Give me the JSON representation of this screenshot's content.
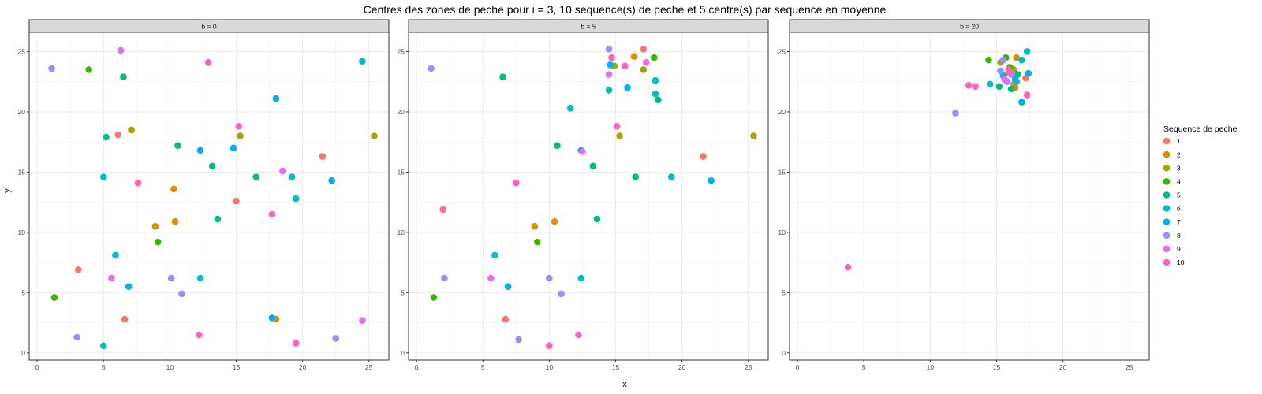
{
  "chart_data": {
    "type": "scatter",
    "title": "Centres des zones de peche pour i = 3, 10 sequence(s) de peche et 5 centre(s) par sequence en moyenne",
    "xlabel": "x",
    "ylabel": "y",
    "xlim": [
      -0.6,
      26.5
    ],
    "ylim": [
      -0.6,
      26.6
    ],
    "xticks": [
      0,
      5,
      10,
      15,
      20,
      25
    ],
    "yticks": [
      0,
      5,
      10,
      15,
      20,
      25
    ],
    "grid": true,
    "legend": {
      "title": "Sequence de peche",
      "position": "right",
      "entries": [
        {
          "label": "1",
          "color": "#F8766D"
        },
        {
          "label": "2",
          "color": "#D89000"
        },
        {
          "label": "3",
          "color": "#A3A500"
        },
        {
          "label": "4",
          "color": "#39B600"
        },
        {
          "label": "5",
          "color": "#00BF7D"
        },
        {
          "label": "6",
          "color": "#00BFC4"
        },
        {
          "label": "7",
          "color": "#00B0F6"
        },
        {
          "label": "8",
          "color": "#9590FF"
        },
        {
          "label": "9",
          "color": "#E76BF3"
        },
        {
          "label": "10",
          "color": "#FF62BC"
        }
      ]
    },
    "panels": [
      {
        "strip": "b = 0",
        "points": [
          {
            "s": 1,
            "x": 3.1,
            "y": 6.9
          },
          {
            "s": 1,
            "x": 6.1,
            "y": 18.1
          },
          {
            "s": 1,
            "x": 6.6,
            "y": 2.8
          },
          {
            "s": 1,
            "x": 15.0,
            "y": 12.6
          },
          {
            "s": 1,
            "x": 21.5,
            "y": 16.3
          },
          {
            "s": 2,
            "x": 8.9,
            "y": 10.5
          },
          {
            "s": 2,
            "x": 10.3,
            "y": 13.6
          },
          {
            "s": 2,
            "x": 10.4,
            "y": 10.9
          },
          {
            "s": 2,
            "x": 18.0,
            "y": 2.8
          },
          {
            "s": 3,
            "x": 7.1,
            "y": 18.5
          },
          {
            "s": 3,
            "x": 15.3,
            "y": 18.0
          },
          {
            "s": 3,
            "x": 25.4,
            "y": 18.0
          },
          {
            "s": 4,
            "x": 3.9,
            "y": 23.5
          },
          {
            "s": 4,
            "x": 9.1,
            "y": 9.2
          },
          {
            "s": 4,
            "x": 1.3,
            "y": 4.6
          },
          {
            "s": 5,
            "x": 6.5,
            "y": 22.9
          },
          {
            "s": 5,
            "x": 5.2,
            "y": 17.9
          },
          {
            "s": 5,
            "x": 10.6,
            "y": 17.2
          },
          {
            "s": 5,
            "x": 13.2,
            "y": 15.5
          },
          {
            "s": 5,
            "x": 16.5,
            "y": 14.6
          },
          {
            "s": 5,
            "x": 13.6,
            "y": 11.1
          },
          {
            "s": 6,
            "x": 24.5,
            "y": 24.2
          },
          {
            "s": 6,
            "x": 5.0,
            "y": 14.6
          },
          {
            "s": 6,
            "x": 19.2,
            "y": 14.6
          },
          {
            "s": 6,
            "x": 19.5,
            "y": 12.8
          },
          {
            "s": 6,
            "x": 5.9,
            "y": 8.1
          },
          {
            "s": 6,
            "x": 12.3,
            "y": 6.2
          },
          {
            "s": 6,
            "x": 5.0,
            "y": 0.6
          },
          {
            "s": 7,
            "x": 18.0,
            "y": 21.1
          },
          {
            "s": 7,
            "x": 12.3,
            "y": 16.8
          },
          {
            "s": 7,
            "x": 14.8,
            "y": 17.0
          },
          {
            "s": 7,
            "x": 22.2,
            "y": 14.3
          },
          {
            "s": 7,
            "x": 6.9,
            "y": 5.5
          },
          {
            "s": 7,
            "x": 17.7,
            "y": 2.9
          },
          {
            "s": 8,
            "x": 1.1,
            "y": 23.6
          },
          {
            "s": 8,
            "x": 10.1,
            "y": 6.2
          },
          {
            "s": 8,
            "x": 10.9,
            "y": 4.9
          },
          {
            "s": 8,
            "x": 3.0,
            "y": 1.3
          },
          {
            "s": 8,
            "x": 22.5,
            "y": 1.2
          },
          {
            "s": 9,
            "x": 6.3,
            "y": 25.1
          },
          {
            "s": 9,
            "x": 18.5,
            "y": 15.1
          },
          {
            "s": 9,
            "x": 5.6,
            "y": 6.2
          },
          {
            "s": 9,
            "x": 24.5,
            "y": 2.7
          },
          {
            "s": 10,
            "x": 12.9,
            "y": 24.1
          },
          {
            "s": 10,
            "x": 15.2,
            "y": 18.8
          },
          {
            "s": 10,
            "x": 7.6,
            "y": 14.1
          },
          {
            "s": 10,
            "x": 17.7,
            "y": 11.5
          },
          {
            "s": 10,
            "x": 12.2,
            "y": 1.5
          },
          {
            "s": 10,
            "x": 19.5,
            "y": 0.8
          }
        ]
      },
      {
        "strip": "b = 5",
        "points": [
          {
            "s": 1,
            "x": 17.1,
            "y": 25.2
          },
          {
            "s": 1,
            "x": 2.0,
            "y": 11.9
          },
          {
            "s": 1,
            "x": 21.6,
            "y": 16.3
          },
          {
            "s": 1,
            "x": 6.7,
            "y": 2.8
          },
          {
            "s": 2,
            "x": 16.4,
            "y": 24.6
          },
          {
            "s": 2,
            "x": 8.9,
            "y": 10.5
          },
          {
            "s": 2,
            "x": 10.4,
            "y": 10.9
          },
          {
            "s": 3,
            "x": 14.9,
            "y": 23.8
          },
          {
            "s": 3,
            "x": 17.1,
            "y": 23.5
          },
          {
            "s": 3,
            "x": 15.3,
            "y": 18.0
          },
          {
            "s": 3,
            "x": 25.4,
            "y": 18.0
          },
          {
            "s": 4,
            "x": 17.9,
            "y": 24.5
          },
          {
            "s": 4,
            "x": 9.1,
            "y": 9.2
          },
          {
            "s": 4,
            "x": 1.3,
            "y": 4.6
          },
          {
            "s": 5,
            "x": 6.5,
            "y": 22.9
          },
          {
            "s": 5,
            "x": 18.2,
            "y": 21.0
          },
          {
            "s": 5,
            "x": 10.6,
            "y": 17.2
          },
          {
            "s": 5,
            "x": 13.3,
            "y": 15.5
          },
          {
            "s": 5,
            "x": 16.5,
            "y": 14.6
          },
          {
            "s": 5,
            "x": 13.6,
            "y": 11.1
          },
          {
            "s": 6,
            "x": 18.0,
            "y": 22.6
          },
          {
            "s": 6,
            "x": 18.0,
            "y": 21.5
          },
          {
            "s": 6,
            "x": 11.6,
            "y": 20.3
          },
          {
            "s": 6,
            "x": 14.5,
            "y": 21.8
          },
          {
            "s": 6,
            "x": 19.2,
            "y": 14.6
          },
          {
            "s": 6,
            "x": 5.9,
            "y": 8.1
          },
          {
            "s": 6,
            "x": 12.4,
            "y": 6.2
          },
          {
            "s": 7,
            "x": 14.6,
            "y": 23.9
          },
          {
            "s": 7,
            "x": 15.9,
            "y": 22.0
          },
          {
            "s": 7,
            "x": 12.4,
            "y": 16.8
          },
          {
            "s": 7,
            "x": 22.2,
            "y": 14.3
          },
          {
            "s": 7,
            "x": 6.9,
            "y": 5.5
          },
          {
            "s": 8,
            "x": 14.5,
            "y": 25.2
          },
          {
            "s": 8,
            "x": 1.1,
            "y": 23.6
          },
          {
            "s": 8,
            "x": 2.1,
            "y": 6.2
          },
          {
            "s": 8,
            "x": 10.0,
            "y": 6.2
          },
          {
            "s": 8,
            "x": 10.9,
            "y": 4.9
          },
          {
            "s": 8,
            "x": 7.7,
            "y": 1.1
          },
          {
            "s": 9,
            "x": 17.3,
            "y": 24.1
          },
          {
            "s": 9,
            "x": 14.5,
            "y": 23.1
          },
          {
            "s": 9,
            "x": 12.5,
            "y": 16.7
          },
          {
            "s": 9,
            "x": 5.6,
            "y": 6.2
          },
          {
            "s": 10,
            "x": 14.7,
            "y": 24.5
          },
          {
            "s": 10,
            "x": 15.7,
            "y": 23.8
          },
          {
            "s": 10,
            "x": 15.1,
            "y": 18.8
          },
          {
            "s": 10,
            "x": 7.5,
            "y": 14.1
          },
          {
            "s": 10,
            "x": 10.0,
            "y": 0.6
          },
          {
            "s": 10,
            "x": 12.2,
            "y": 1.5
          }
        ]
      },
      {
        "strip": "b = 20",
        "points": [
          {
            "s": 1,
            "x": 17.2,
            "y": 22.8
          },
          {
            "s": 1,
            "x": 16.3,
            "y": 22.3
          },
          {
            "s": 2,
            "x": 16.5,
            "y": 24.5
          },
          {
            "s": 2,
            "x": 15.9,
            "y": 23.2
          },
          {
            "s": 2,
            "x": 16.4,
            "y": 22.0
          },
          {
            "s": 3,
            "x": 15.3,
            "y": 24.1
          },
          {
            "s": 3,
            "x": 16.3,
            "y": 23.5
          },
          {
            "s": 4,
            "x": 14.4,
            "y": 24.3
          },
          {
            "s": 4,
            "x": 15.7,
            "y": 24.5
          },
          {
            "s": 4,
            "x": 16.0,
            "y": 23.7
          },
          {
            "s": 5,
            "x": 15.2,
            "y": 22.1
          },
          {
            "s": 5,
            "x": 16.1,
            "y": 21.9
          },
          {
            "s": 5,
            "x": 16.6,
            "y": 23.1
          },
          {
            "s": 6,
            "x": 17.3,
            "y": 25.0
          },
          {
            "s": 6,
            "x": 16.9,
            "y": 24.3
          },
          {
            "s": 6,
            "x": 14.5,
            "y": 22.3
          },
          {
            "s": 6,
            "x": 16.5,
            "y": 22.5
          },
          {
            "s": 7,
            "x": 17.4,
            "y": 23.2
          },
          {
            "s": 7,
            "x": 16.9,
            "y": 20.8
          },
          {
            "s": 7,
            "x": 16.4,
            "y": 22.7
          },
          {
            "s": 7,
            "x": 15.5,
            "y": 23.0
          },
          {
            "s": 8,
            "x": 15.5,
            "y": 24.3
          },
          {
            "s": 8,
            "x": 15.3,
            "y": 23.4
          },
          {
            "s": 8,
            "x": 11.9,
            "y": 19.9
          },
          {
            "s": 8,
            "x": 15.8,
            "y": 22.5
          },
          {
            "s": 9,
            "x": 15.6,
            "y": 22.7
          },
          {
            "s": 9,
            "x": 16.1,
            "y": 23.1
          },
          {
            "s": 10,
            "x": 12.9,
            "y": 22.2
          },
          {
            "s": 10,
            "x": 13.4,
            "y": 22.1
          },
          {
            "s": 10,
            "x": 15.9,
            "y": 23.5
          },
          {
            "s": 10,
            "x": 17.3,
            "y": 21.4
          },
          {
            "s": 10,
            "x": 3.8,
            "y": 7.1
          }
        ]
      }
    ]
  }
}
